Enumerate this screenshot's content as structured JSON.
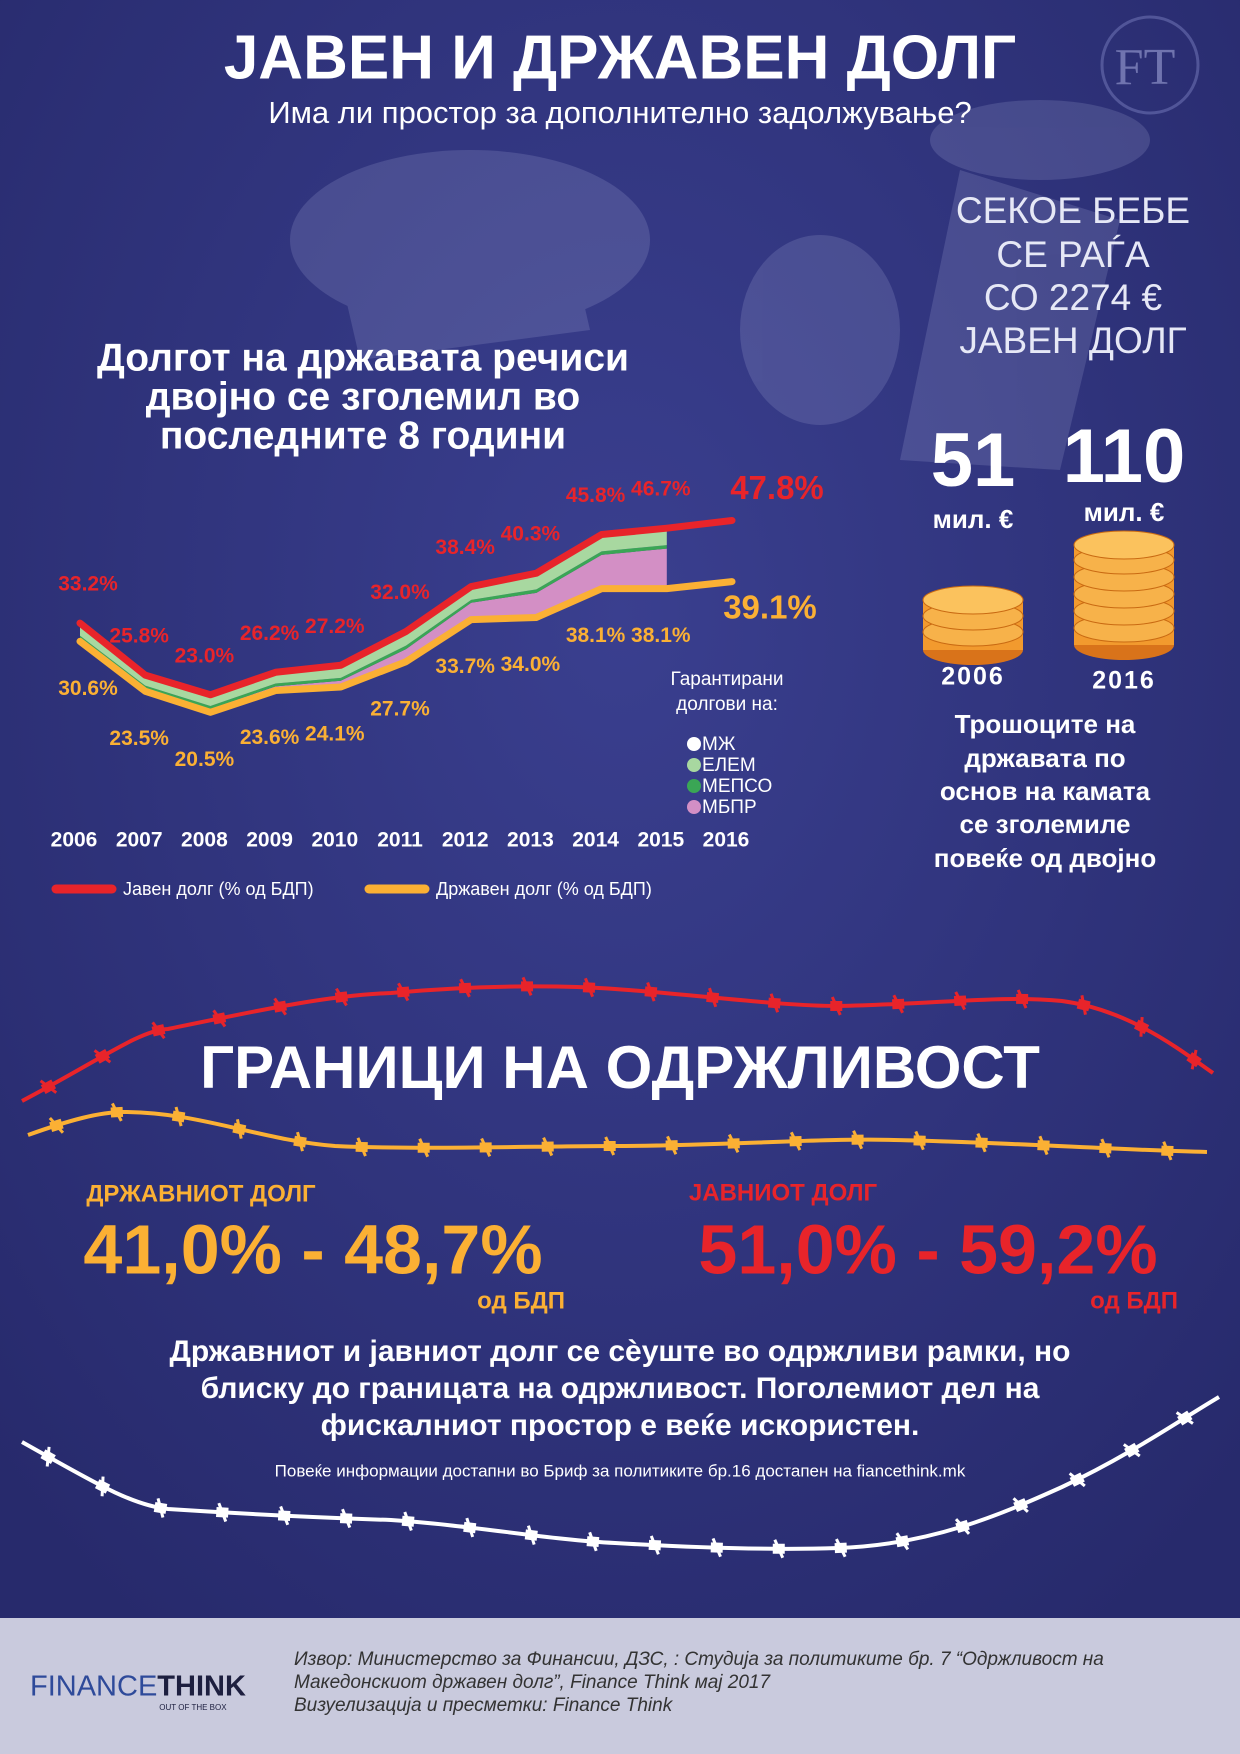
{
  "header": {
    "title": "ЈАВЕН И ДРЖАВЕН ДОЛГ",
    "subtitle": "Има ли простор за дополнително задолжување?",
    "logo_mark": "FT"
  },
  "infobox": {
    "lines": [
      "СЕКОЕ БЕБЕ",
      "СЕ РАЃА",
      "СО 2274 €",
      "ЈАВЕН ДОЛГ"
    ]
  },
  "chart_data": {
    "type": "line",
    "title": [
      "Долгот на државата речиси",
      "двојно се зголемил во",
      "последните 8 години"
    ],
    "categories": [
      "2006",
      "2007",
      "2008",
      "2009",
      "2010",
      "2011",
      "2012",
      "2013",
      "2014",
      "2015",
      "2016"
    ],
    "ylim": [
      15,
      50
    ],
    "series": [
      {
        "name": "Јавен долг (% од БДП)",
        "color": "#e8242a",
        "values": [
          33.2,
          25.8,
          23.0,
          26.2,
          27.2,
          32.0,
          38.4,
          40.3,
          45.8,
          46.7,
          47.8
        ],
        "value_labels": [
          "33.2%",
          "25.8%",
          "23.0%",
          "26.2%",
          "27.2%",
          "32.0%",
          "38.4%",
          "40.3%",
          "45.8%",
          "46.7%",
          "47.8%"
        ]
      },
      {
        "name": "Државен долг  (% од БДП)",
        "color": "#fbb034",
        "values": [
          30.6,
          23.5,
          20.5,
          23.6,
          24.1,
          27.7,
          33.7,
          34.0,
          38.1,
          38.1,
          39.1
        ],
        "value_labels": [
          "30.6%",
          "23.5%",
          "20.5%",
          "23.6%",
          "24.1%",
          "27.7%",
          "33.7%",
          "34.0%",
          "38.1%",
          "38.1%",
          "39.1%"
        ]
      }
    ],
    "stacked_legend_title": [
      "Гарантирани",
      "долгови на:"
    ],
    "stacked_series": [
      {
        "name": "МЖ",
        "color": "#ffffff",
        "values": [
          0.3,
          0.2,
          0.2,
          0.2,
          0.2,
          0.2,
          0.3,
          0.3,
          0.4,
          0.4,
          null
        ]
      },
      {
        "name": "ЕЛЕМ",
        "color": "#a8d8a0",
        "values": [
          1.5,
          1.3,
          1.4,
          1.4,
          1.6,
          1.8,
          1.6,
          2.0,
          2.0,
          2.0,
          null
        ]
      },
      {
        "name": "МЕПСО",
        "color": "#3aa655",
        "values": [
          0.5,
          0.4,
          0.4,
          0.4,
          0.4,
          0.5,
          0.4,
          0.5,
          0.5,
          0.5,
          null
        ]
      },
      {
        "name": "МБПР",
        "color": "#d38fc5",
        "values": [
          0.3,
          0.4,
          0.5,
          0.6,
          0.9,
          1.8,
          2.4,
          3.5,
          4.8,
          5.7,
          null
        ]
      }
    ]
  },
  "interest": {
    "values": [
      51,
      110
    ],
    "unit": "мил. €",
    "years": [
      "2006",
      "2016"
    ],
    "caption": [
      "Трошоците на",
      "државата по",
      "основ на камата",
      "се зголемиле",
      "повеќе од двојно"
    ]
  },
  "limits": {
    "title": "ГРАНИЦИ НА ОДРЖЛИВОСТ",
    "state": {
      "label": "ДРЖАВНИОТ ДОЛГ",
      "range": "41,0% - 48,7%",
      "note": "од БДП"
    },
    "public": {
      "label": "ЈАВНИОТ ДОЛГ",
      "range": "51,0% - 59,2%",
      "note": "од БДП"
    }
  },
  "conclusion": [
    "Државниот и јавниот долг се сѐуште во одржливи рамки, но",
    "блиску до границата на одржливост. Поголемиот дел на",
    "фискалниот простор е веќе искористен."
  ],
  "more_info": "Повеќе информации достапни во Бриф за политиките бр.16 достапен на fiancethink.mk",
  "footer": {
    "logo_left": "FINANCE",
    "logo_right": "THINK",
    "tagline": "OUT OF THE BOX",
    "source": [
      "Извор: Министерство за Финансии, ДЗС, : Студија за политиките бр. 7 “Одржливост на",
      "Македонскиот државен долг”, Finance Think мај 2017",
      "Визуелизација и пресметки: Finance Think"
    ]
  }
}
